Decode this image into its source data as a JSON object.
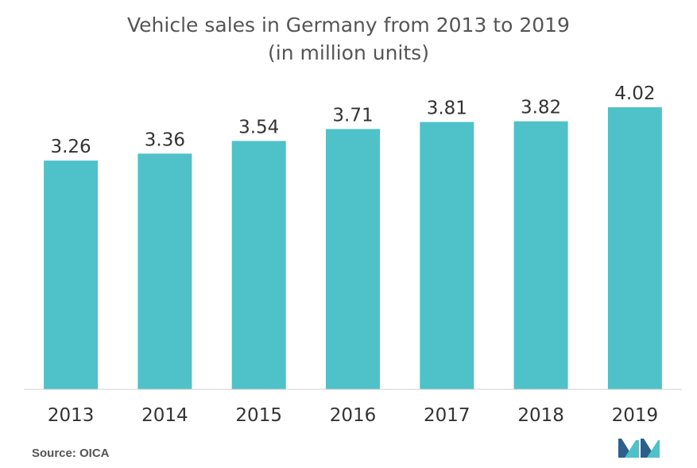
{
  "chart_data": {
    "type": "bar",
    "title": "Vehicle sales in Germany from 2013 to 2019",
    "subtitle": "(in million units)",
    "categories": [
      "2013",
      "2014",
      "2015",
      "2016",
      "2017",
      "2018",
      "2019"
    ],
    "values": [
      3.26,
      3.36,
      3.54,
      3.71,
      3.81,
      3.82,
      4.02
    ],
    "value_labels": [
      "3.26",
      "3.36",
      "3.54",
      "3.71",
      "3.81",
      "3.82",
      "4.02"
    ],
    "xlabel": "",
    "ylabel": "",
    "ylim": [
      0,
      4.02
    ],
    "grid": false,
    "legend": "none",
    "bar_color": "#4FC1C9"
  },
  "footer": {
    "source": "Source: OICA"
  },
  "colors": {
    "title": "#555555",
    "labels": "#333333",
    "axis": "#D0D0D0",
    "logo_dark": "#2E5E8C",
    "logo_light": "#4FC1C9"
  },
  "logo": {
    "icon": "mordor-intelligence-logo-icon"
  }
}
